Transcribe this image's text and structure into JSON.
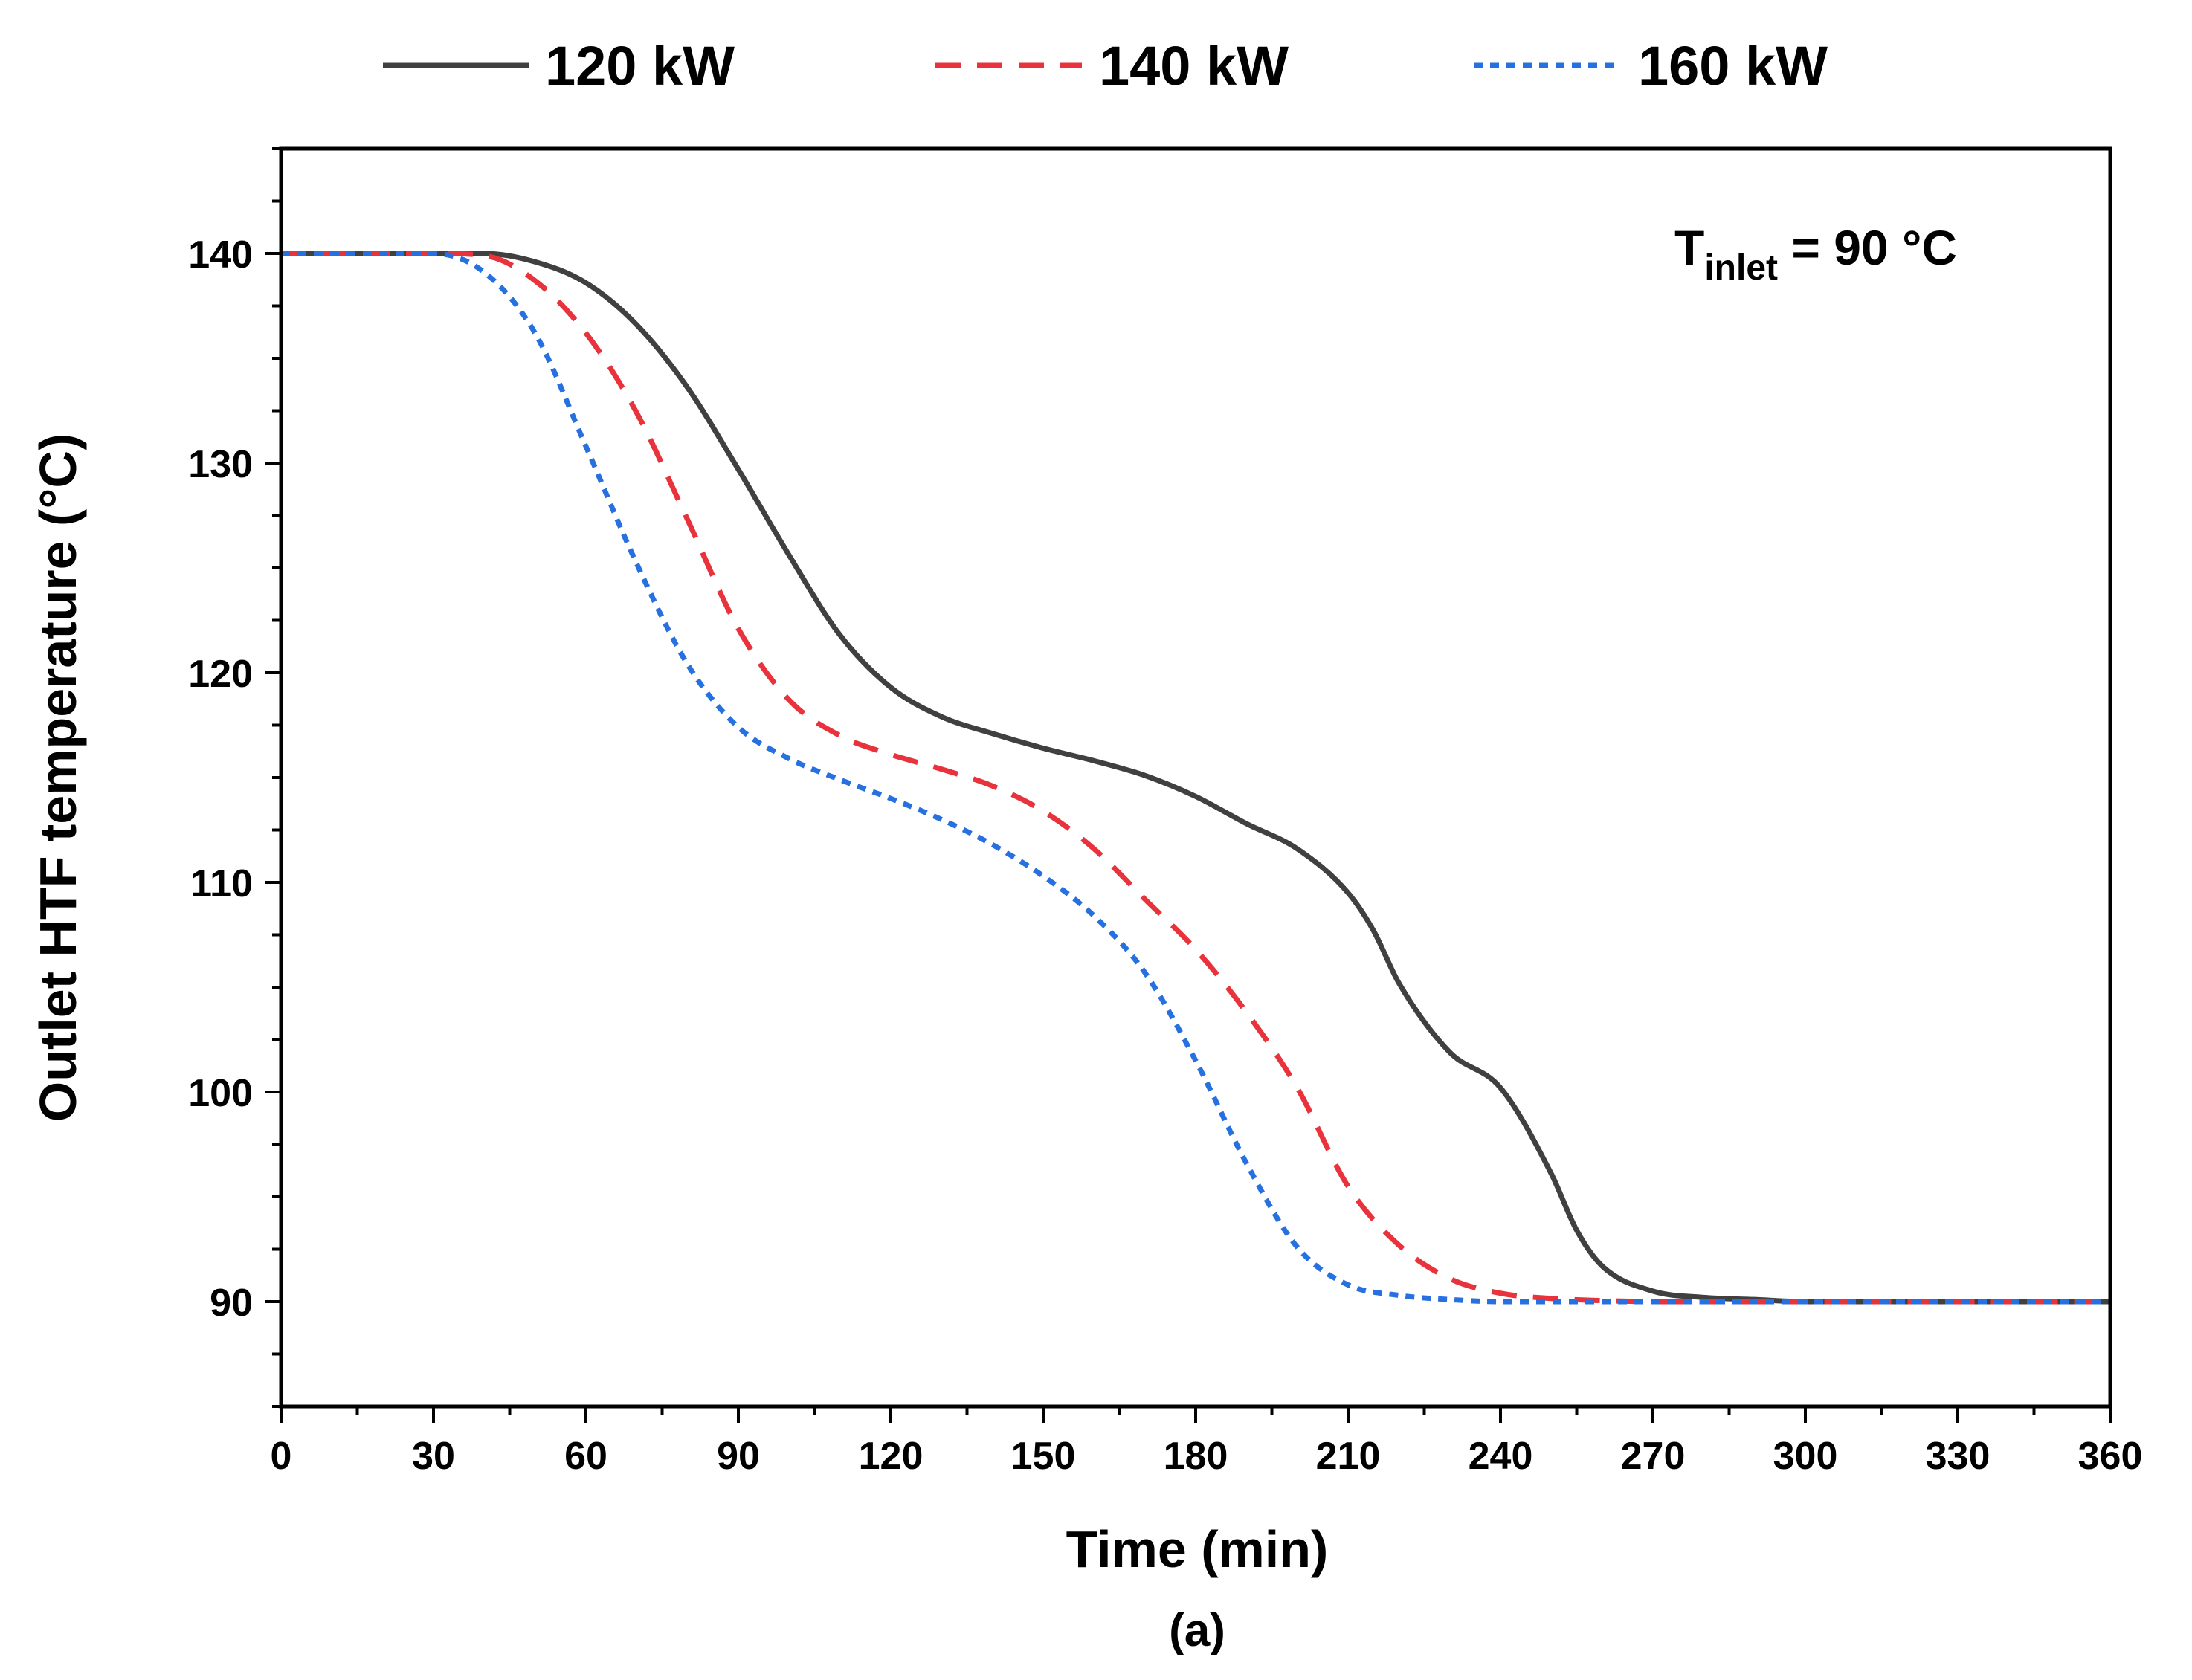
{
  "chart_data": {
    "type": "line",
    "title": "",
    "xlabel": "Time (min)",
    "ylabel": "Outlet HTF temperature (°C)",
    "caption": "(a)",
    "annotation": {
      "main": "T",
      "sub": "inlet",
      "rest": " = 90 °C"
    },
    "xlim": [
      0,
      360
    ],
    "ylim": [
      85,
      145
    ],
    "xticks": [
      0,
      30,
      60,
      90,
      120,
      150,
      180,
      210,
      240,
      270,
      300,
      330,
      360
    ],
    "yticks": [
      90,
      100,
      110,
      120,
      130,
      140
    ],
    "grid": false,
    "legend_position": "top-outside",
    "series": [
      {
        "name": "120 kW",
        "color": "#404040",
        "dash": "solid",
        "x": [
          0,
          40,
          50,
          60,
          70,
          80,
          90,
          100,
          110,
          120,
          130,
          140,
          150,
          160,
          170,
          180,
          190,
          200,
          210,
          215,
          220,
          230,
          240,
          250,
          255,
          260,
          270,
          280,
          290,
          300,
          360
        ],
        "y": [
          140,
          140,
          139.6,
          138.6,
          136.6,
          133.6,
          129.7,
          125.6,
          121.8,
          119.3,
          117.9,
          117.1,
          116.4,
          115.8,
          115.1,
          114.1,
          112.8,
          111.6,
          109.5,
          107.7,
          105.2,
          101.9,
          100.2,
          96.1,
          93.4,
          91.7,
          90.5,
          90.2,
          90.1,
          90.0,
          90.0
        ]
      },
      {
        "name": "140 kW",
        "color": "#e8323c",
        "dash": "dashed",
        "x": [
          0,
          30,
          40,
          50,
          60,
          70,
          80,
          90,
          100,
          110,
          120,
          130,
          140,
          150,
          160,
          170,
          180,
          190,
          200,
          210,
          220,
          230,
          240,
          250,
          260,
          270,
          280,
          360
        ],
        "y": [
          140,
          140,
          139.9,
          138.7,
          136.2,
          132.4,
          127.3,
          122.1,
          118.7,
          117.0,
          116.1,
          115.4,
          114.6,
          113.4,
          111.6,
          109.2,
          106.8,
          103.8,
          100.2,
          95.5,
          92.7,
          91.1,
          90.4,
          90.15,
          90.05,
          90.0,
          90.0,
          90.0
        ]
      },
      {
        "name": "160 kW",
        "color": "#2770e0",
        "dash": "dotted",
        "x": [
          0,
          30,
          40,
          50,
          60,
          70,
          80,
          90,
          100,
          110,
          120,
          130,
          140,
          150,
          160,
          170,
          180,
          190,
          200,
          210,
          220,
          230,
          240,
          250,
          360
        ],
        "y": [
          140,
          140,
          139.1,
          136.2,
          130.8,
          125.2,
          120.4,
          117.4,
          115.9,
          114.9,
          114.0,
          113.0,
          111.8,
          110.3,
          108.4,
          105.7,
          101.5,
          96.6,
          92.6,
          90.8,
          90.3,
          90.1,
          90.0,
          90.0,
          90.0
        ]
      }
    ]
  }
}
